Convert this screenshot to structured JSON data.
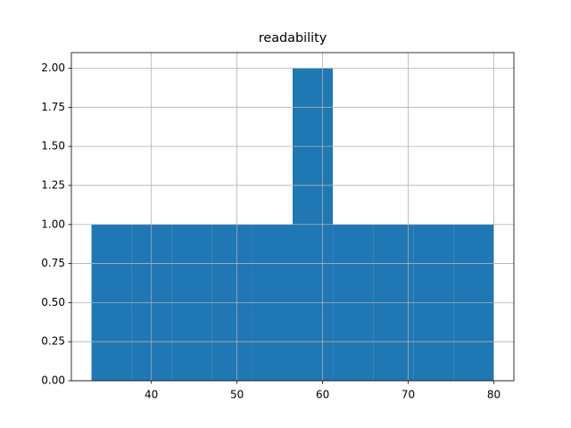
{
  "chart_data": {
    "type": "histogram",
    "title": "readability",
    "bins": [
      33,
      37.7,
      42.4,
      47.1,
      51.8,
      56.5,
      61.2,
      65.9,
      70.6,
      75.3,
      80
    ],
    "values": [
      1,
      1,
      1,
      1,
      1,
      2,
      1,
      1,
      1,
      1
    ],
    "color": "#1f77b4",
    "xlim": [
      30.65,
      82.35
    ],
    "xticks": [
      40,
      50,
      60,
      70,
      80
    ],
    "ylim": [
      0,
      2.1
    ],
    "yticks": [
      {
        "value": 0,
        "label": "0.00"
      },
      {
        "value": 0.25,
        "label": "0.25"
      },
      {
        "value": 0.5,
        "label": "0.50"
      },
      {
        "value": 0.75,
        "label": "0.75"
      },
      {
        "value": 1,
        "label": "1.00"
      },
      {
        "value": 1.25,
        "label": "1.25"
      },
      {
        "value": 1.5,
        "label": "1.50"
      },
      {
        "value": 1.75,
        "label": "1.75"
      },
      {
        "value": 2,
        "label": "2.00"
      }
    ],
    "grid": true
  }
}
